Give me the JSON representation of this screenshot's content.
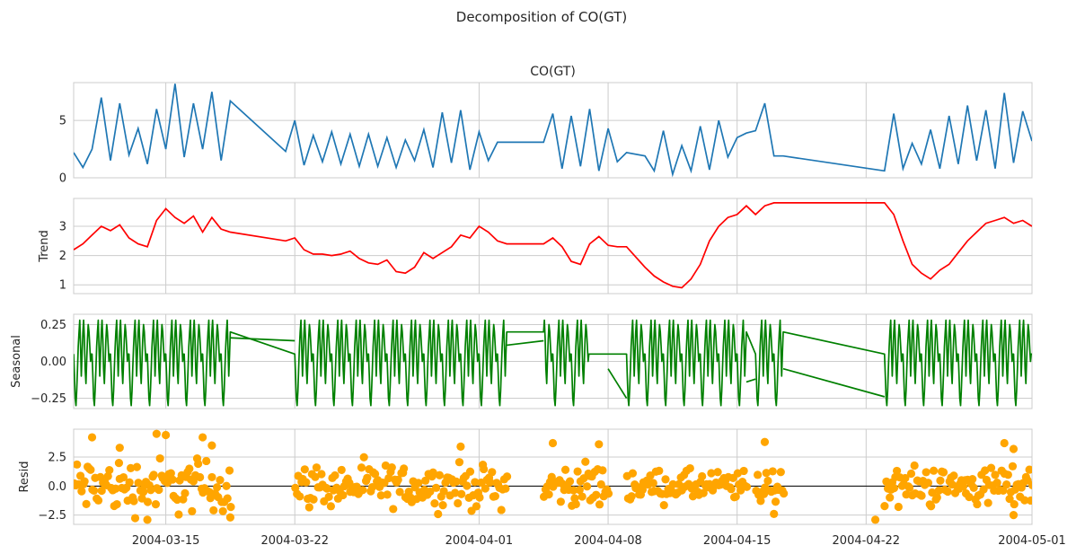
{
  "figure": {
    "suptitle": "Decomposition of CO(GT)"
  },
  "chart_data": [
    {
      "type": "line",
      "title": "CO(GT)",
      "ylabel": "",
      "color": "#1f77b4",
      "ylim": [
        0,
        8.3
      ],
      "yticks": [
        0,
        5
      ],
      "ytick_labels": [
        "0",
        "5"
      ],
      "xlim": [
        "2004-03-10",
        "2004-05-01"
      ],
      "grid": true,
      "x": [
        "2004-03-10",
        "2004-03-10T12",
        "2004-03-11",
        "2004-03-11T12",
        "2004-03-12",
        "2004-03-12T12",
        "2004-03-13",
        "2004-03-13T12",
        "2004-03-14",
        "2004-03-14T12",
        "2004-03-15",
        "2004-03-15T12",
        "2004-03-16",
        "2004-03-16T12",
        "2004-03-17",
        "2004-03-17T12",
        "2004-03-18",
        "2004-03-18T12",
        "2004-03-21T12",
        "2004-03-22",
        "2004-03-22T12",
        "2004-03-23",
        "2004-03-23T12",
        "2004-03-24",
        "2004-03-24T12",
        "2004-03-25",
        "2004-03-25T12",
        "2004-03-26",
        "2004-03-26T12",
        "2004-03-27",
        "2004-03-27T12",
        "2004-03-28",
        "2004-03-28T12",
        "2004-03-29",
        "2004-03-29T12",
        "2004-03-30",
        "2004-03-30T12",
        "2004-03-31",
        "2004-03-31T12",
        "2004-04-01",
        "2004-04-01T12",
        "2004-04-02",
        "2004-04-02T12",
        "2004-04-04T12",
        "2004-04-05",
        "2004-04-05T12",
        "2004-04-06",
        "2004-04-06T12",
        "2004-04-07",
        "2004-04-07T12",
        "2004-04-08",
        "2004-04-08T12",
        "2004-04-09",
        "2004-04-10",
        "2004-04-10T12",
        "2004-04-11",
        "2004-04-11T12",
        "2004-04-12",
        "2004-04-12T12",
        "2004-04-13",
        "2004-04-13T12",
        "2004-04-14",
        "2004-04-14T12",
        "2004-04-15",
        "2004-04-15T12",
        "2004-04-16",
        "2004-04-16T12",
        "2004-04-17",
        "2004-04-17T12",
        "2004-04-23",
        "2004-04-23T12",
        "2004-04-24",
        "2004-04-24T12",
        "2004-04-25",
        "2004-04-25T12",
        "2004-04-26",
        "2004-04-26T12",
        "2004-04-27",
        "2004-04-27T12",
        "2004-04-28",
        "2004-04-28T12",
        "2004-04-29",
        "2004-04-29T12",
        "2004-04-30",
        "2004-04-30T12",
        "2004-05-01"
      ],
      "y": [
        2.2,
        0.9,
        2.5,
        7.0,
        1.5,
        6.5,
        2.0,
        4.3,
        1.2,
        6.0,
        2.5,
        8.2,
        1.8,
        6.5,
        2.5,
        7.5,
        1.5,
        6.7,
        2.3,
        5.0,
        1.1,
        3.7,
        1.4,
        4.0,
        1.2,
        3.8,
        1.0,
        3.8,
        1.0,
        3.5,
        0.9,
        3.3,
        1.5,
        4.2,
        0.9,
        5.7,
        1.3,
        5.9,
        0.7,
        4.0,
        1.5,
        3.1,
        3.1,
        3.1,
        5.6,
        0.8,
        5.4,
        1.0,
        6.0,
        0.6,
        4.3,
        1.4,
        2.2,
        1.9,
        0.6,
        4.1,
        0.3,
        2.8,
        0.6,
        4.5,
        0.7,
        5.0,
        1.8,
        3.5,
        3.9,
        4.1,
        6.5,
        1.9,
        1.9,
        0.6,
        5.6,
        0.8,
        3.0,
        1.2,
        4.2,
        0.8,
        5.4,
        1.2,
        6.3,
        1.5,
        5.9,
        0.8,
        7.4,
        1.3,
        5.8,
        3.2
      ]
    },
    {
      "type": "line",
      "title": "",
      "ylabel": "Trend",
      "color": "#ff0000",
      "ylim": [
        0.7,
        3.95
      ],
      "yticks": [
        1,
        2,
        3
      ],
      "ytick_labels": [
        "1",
        "2",
        "3"
      ],
      "xlim": [
        "2004-03-10",
        "2004-05-01"
      ],
      "grid": true,
      "x": [
        "2004-03-10",
        "2004-03-10T12",
        "2004-03-11",
        "2004-03-11T12",
        "2004-03-12",
        "2004-03-12T12",
        "2004-03-13",
        "2004-03-13T12",
        "2004-03-14",
        "2004-03-14T12",
        "2004-03-15",
        "2004-03-15T12",
        "2004-03-16",
        "2004-03-16T12",
        "2004-03-17",
        "2004-03-17T12",
        "2004-03-18",
        "2004-03-18T12",
        "2004-03-21T12",
        "2004-03-22",
        "2004-03-22T12",
        "2004-03-23",
        "2004-03-23T12",
        "2004-03-24",
        "2004-03-24T12",
        "2004-03-25",
        "2004-03-25T12",
        "2004-03-26",
        "2004-03-26T12",
        "2004-03-27",
        "2004-03-27T12",
        "2004-03-28",
        "2004-03-28T12",
        "2004-03-29",
        "2004-03-29T12",
        "2004-03-30",
        "2004-03-30T12",
        "2004-03-31",
        "2004-03-31T12",
        "2004-04-01",
        "2004-04-01T12",
        "2004-04-02",
        "2004-04-02T12",
        "2004-04-04T12",
        "2004-04-05",
        "2004-04-05T12",
        "2004-04-06",
        "2004-04-06T12",
        "2004-04-07",
        "2004-04-07T12",
        "2004-04-08",
        "2004-04-08T12",
        "2004-04-09",
        "2004-04-10",
        "2004-04-10T12",
        "2004-04-11",
        "2004-04-11T12",
        "2004-04-12",
        "2004-04-12T12",
        "2004-04-13",
        "2004-04-13T12",
        "2004-04-14",
        "2004-04-14T12",
        "2004-04-15",
        "2004-04-15T12",
        "2004-04-16",
        "2004-04-16T12",
        "2004-04-17",
        "2004-04-17T12",
        "2004-04-23",
        "2004-04-23T12",
        "2004-04-24",
        "2004-04-24T12",
        "2004-04-25",
        "2004-04-25T12",
        "2004-04-26",
        "2004-04-26T12",
        "2004-04-27",
        "2004-04-27T12",
        "2004-04-28",
        "2004-04-28T12",
        "2004-04-29",
        "2004-04-29T12",
        "2004-04-30",
        "2004-04-30T12",
        "2004-05-01"
      ],
      "y": [
        2.2,
        2.4,
        2.7,
        3.0,
        2.85,
        3.05,
        2.6,
        2.4,
        2.3,
        3.2,
        3.6,
        3.3,
        3.1,
        3.35,
        2.8,
        3.3,
        2.9,
        2.8,
        2.5,
        2.6,
        2.2,
        2.05,
        2.05,
        2.0,
        2.05,
        2.15,
        1.9,
        1.75,
        1.7,
        1.85,
        1.45,
        1.4,
        1.6,
        2.1,
        1.9,
        2.1,
        2.3,
        2.7,
        2.6,
        3.0,
        2.8,
        2.5,
        2.4,
        2.4,
        2.6,
        2.3,
        1.8,
        1.7,
        2.4,
        2.65,
        2.35,
        2.3,
        2.3,
        1.6,
        1.3,
        1.1,
        0.95,
        0.9,
        1.2,
        1.7,
        2.5,
        3.0,
        3.3,
        3.4,
        3.7,
        3.4,
        3.7,
        3.8,
        3.8,
        3.8,
        3.4,
        2.5,
        1.7,
        1.4,
        1.2,
        1.5,
        1.7,
        2.1,
        2.5,
        2.8,
        3.1,
        3.2,
        3.3,
        3.1,
        3.2,
        3.0
      ]
    },
    {
      "type": "line",
      "title": "",
      "ylabel": "Seasonal",
      "color": "#008000",
      "ylim": [
        -0.32,
        0.32
      ],
      "yticks": [
        -0.25,
        0.0,
        0.25
      ],
      "ytick_labels": [
        "−0.25",
        "0.00",
        "0.25"
      ],
      "xlim": [
        "2004-03-10",
        "2004-05-01"
      ],
      "grid": true,
      "segments": [
        {
          "start": "2004-03-10",
          "end": "2004-03-18T12"
        },
        {
          "start": "2004-03-22",
          "end": "2004-04-02T12"
        },
        {
          "start": "2004-04-04T12",
          "end": "2004-04-07"
        },
        {
          "start": "2004-04-09",
          "end": "2004-04-15T12"
        },
        {
          "start": "2004-04-16",
          "end": "2004-04-17T12"
        },
        {
          "start": "2004-04-23",
          "end": "2004-05-01"
        }
      ],
      "daily_pattern": [
        0.05,
        -0.1,
        -0.25,
        -0.3,
        -0.2,
        -0.05,
        0.1,
        0.2,
        0.28,
        0.1,
        -0.1,
        0.05,
        0.2,
        0.28,
        0.15,
        -0.05,
        -0.15,
        0.0,
        0.15,
        0.25,
        0.2,
        0.1,
        0.0,
        0.05
      ],
      "bridge_points": [
        {
          "x": "2004-03-18T12",
          "y": 0.16
        },
        {
          "x": "2004-03-22",
          "y": 0.14
        },
        {
          "x": "2004-04-02T12",
          "y": 0.11
        },
        {
          "x": "2004-04-04T12",
          "y": 0.14
        },
        {
          "x": "2004-04-08",
          "y": -0.05
        },
        {
          "x": "2004-04-09",
          "y": -0.25
        },
        {
          "x": "2004-04-15T12",
          "y": -0.14
        },
        {
          "x": "2004-04-16",
          "y": -0.12
        },
        {
          "x": "2004-04-17T12",
          "y": -0.05
        },
        {
          "x": "2004-04-23",
          "y": -0.24
        }
      ]
    },
    {
      "type": "scatter",
      "title": "",
      "ylabel": "Resid",
      "color": "#ffa500",
      "ylim": [
        -3.3,
        4.9
      ],
      "yticks": [
        -2.5,
        0.0,
        2.5
      ],
      "ytick_labels": [
        "−2.5",
        "0.0",
        "2.5"
      ],
      "baseline": 0.0,
      "xlim": [
        "2004-03-10",
        "2004-05-01"
      ],
      "xticks": [
        "2004-03-15",
        "2004-03-22",
        "2004-04-01",
        "2004-04-08",
        "2004-04-15",
        "2004-04-22",
        "2004-05-01"
      ],
      "xtick_labels": [
        "2004-03-15",
        "2004-03-22",
        "2004-04-01",
        "2004-04-08",
        "2004-04-15",
        "2004-04-22",
        "2004-05-01"
      ],
      "grid": true,
      "segments": [
        {
          "start": "2004-03-10",
          "end": "2004-03-18T12",
          "amp": 2.4
        },
        {
          "start": "2004-03-22",
          "end": "2004-04-02T12",
          "amp": 1.8
        },
        {
          "start": "2004-04-04T12",
          "end": "2004-04-07",
          "amp": 1.6
        },
        {
          "start": "2004-04-07",
          "end": "2004-04-08",
          "amp": 2.2
        },
        {
          "start": "2004-04-09",
          "end": "2004-04-15T12",
          "amp": 1.3
        },
        {
          "start": "2004-04-16",
          "end": "2004-04-17T12",
          "amp": 1.7
        },
        {
          "start": "2004-04-23",
          "end": "2004-05-01",
          "amp": 1.7
        }
      ],
      "points": [
        {
          "x": "2004-03-11",
          "y": 4.2
        },
        {
          "x": "2004-03-14T12",
          "y": 4.5
        },
        {
          "x": "2004-03-15",
          "y": 4.4
        },
        {
          "x": "2004-03-17",
          "y": 4.2
        },
        {
          "x": "2004-03-17T12",
          "y": 3.5
        },
        {
          "x": "2004-03-12T12",
          "y": 3.3
        },
        {
          "x": "2004-03-31",
          "y": 3.4
        },
        {
          "x": "2004-04-05",
          "y": 3.7
        },
        {
          "x": "2004-04-07T12",
          "y": 3.6
        },
        {
          "x": "2004-04-16T12",
          "y": 3.8
        },
        {
          "x": "2004-04-29T12",
          "y": 3.7
        },
        {
          "x": "2004-04-30",
          "y": 3.2
        },
        {
          "x": "2004-03-14",
          "y": -2.9
        },
        {
          "x": "2004-03-18T12",
          "y": -2.7
        },
        {
          "x": "2004-04-17",
          "y": -2.4
        },
        {
          "x": "2004-04-22T12",
          "y": -2.9
        },
        {
          "x": "2004-04-30",
          "y": -2.5
        }
      ]
    }
  ]
}
